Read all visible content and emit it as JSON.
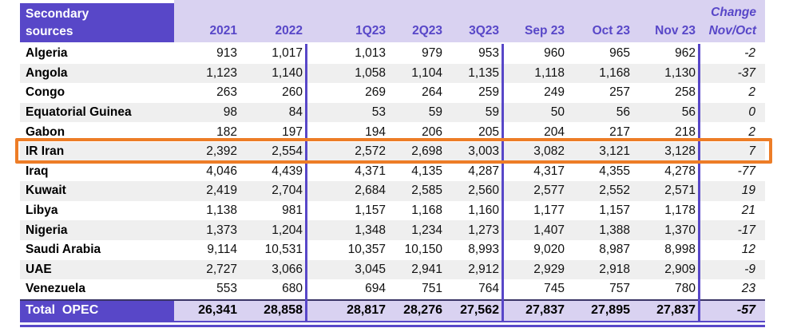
{
  "table": {
    "header": {
      "label_line1": "Secondary",
      "label_line2": "sources",
      "columns": [
        "2021",
        "2022",
        "1Q23",
        "2Q23",
        "3Q23",
        "Sep 23",
        "Oct 23",
        "Nov 23"
      ],
      "change_line1": "Change",
      "change_line2": "Nov/Oct"
    },
    "rows": [
      {
        "label": "Algeria",
        "values": [
          "913",
          "1,017",
          "1,013",
          "979",
          "953",
          "960",
          "965",
          "962"
        ],
        "change": "-2",
        "highlight": false
      },
      {
        "label": "Angola",
        "values": [
          "1,123",
          "1,140",
          "1,058",
          "1,104",
          "1,135",
          "1,118",
          "1,168",
          "1,130"
        ],
        "change": "-37",
        "highlight": false
      },
      {
        "label": "Congo",
        "values": [
          "263",
          "260",
          "269",
          "264",
          "259",
          "249",
          "257",
          "258"
        ],
        "change": "2",
        "highlight": false
      },
      {
        "label": "Equatorial Guinea",
        "values": [
          "98",
          "84",
          "53",
          "59",
          "59",
          "50",
          "56",
          "56"
        ],
        "change": "0",
        "highlight": false
      },
      {
        "label": "Gabon",
        "values": [
          "182",
          "197",
          "194",
          "206",
          "205",
          "204",
          "217",
          "218"
        ],
        "change": "2",
        "highlight": false
      },
      {
        "label": "IR Iran",
        "values": [
          "2,392",
          "2,554",
          "2,572",
          "2,698",
          "3,003",
          "3,082",
          "3,121",
          "3,128"
        ],
        "change": "7",
        "highlight": true
      },
      {
        "label": "Iraq",
        "values": [
          "4,046",
          "4,439",
          "4,371",
          "4,135",
          "4,287",
          "4,317",
          "4,355",
          "4,278"
        ],
        "change": "-77",
        "highlight": false
      },
      {
        "label": "Kuwait",
        "values": [
          "2,419",
          "2,704",
          "2,684",
          "2,585",
          "2,560",
          "2,577",
          "2,552",
          "2,571"
        ],
        "change": "19",
        "highlight": false
      },
      {
        "label": "Libya",
        "values": [
          "1,138",
          "981",
          "1,157",
          "1,168",
          "1,160",
          "1,177",
          "1,157",
          "1,178"
        ],
        "change": "21",
        "highlight": false
      },
      {
        "label": "Nigeria",
        "values": [
          "1,373",
          "1,204",
          "1,348",
          "1,234",
          "1,273",
          "1,407",
          "1,388",
          "1,370"
        ],
        "change": "-17",
        "highlight": false
      },
      {
        "label": "Saudi Arabia",
        "values": [
          "9,114",
          "10,531",
          "10,357",
          "10,150",
          "8,993",
          "9,020",
          "8,987",
          "8,998"
        ],
        "change": "12",
        "highlight": false
      },
      {
        "label": "UAE",
        "values": [
          "2,727",
          "3,066",
          "3,045",
          "2,941",
          "2,912",
          "2,929",
          "2,918",
          "2,909"
        ],
        "change": "-9",
        "highlight": false
      },
      {
        "label": "Venezuela",
        "values": [
          "553",
          "680",
          "694",
          "751",
          "764",
          "745",
          "757",
          "780"
        ],
        "change": "23",
        "highlight": false
      }
    ],
    "total": {
      "label": "Total  OPEC",
      "values": [
        "26,341",
        "28,858",
        "28,817",
        "28,276",
        "27,562",
        "27,837",
        "27,895",
        "27,837"
      ],
      "change": "-57"
    }
  },
  "colors": {
    "accent_violet": "#5847C8",
    "light_violet": "#D9D2F1",
    "zebra_gray": "#EFEFEF",
    "highlight_orange": "#ED7D27",
    "total_top_rule": "#3A3566"
  }
}
